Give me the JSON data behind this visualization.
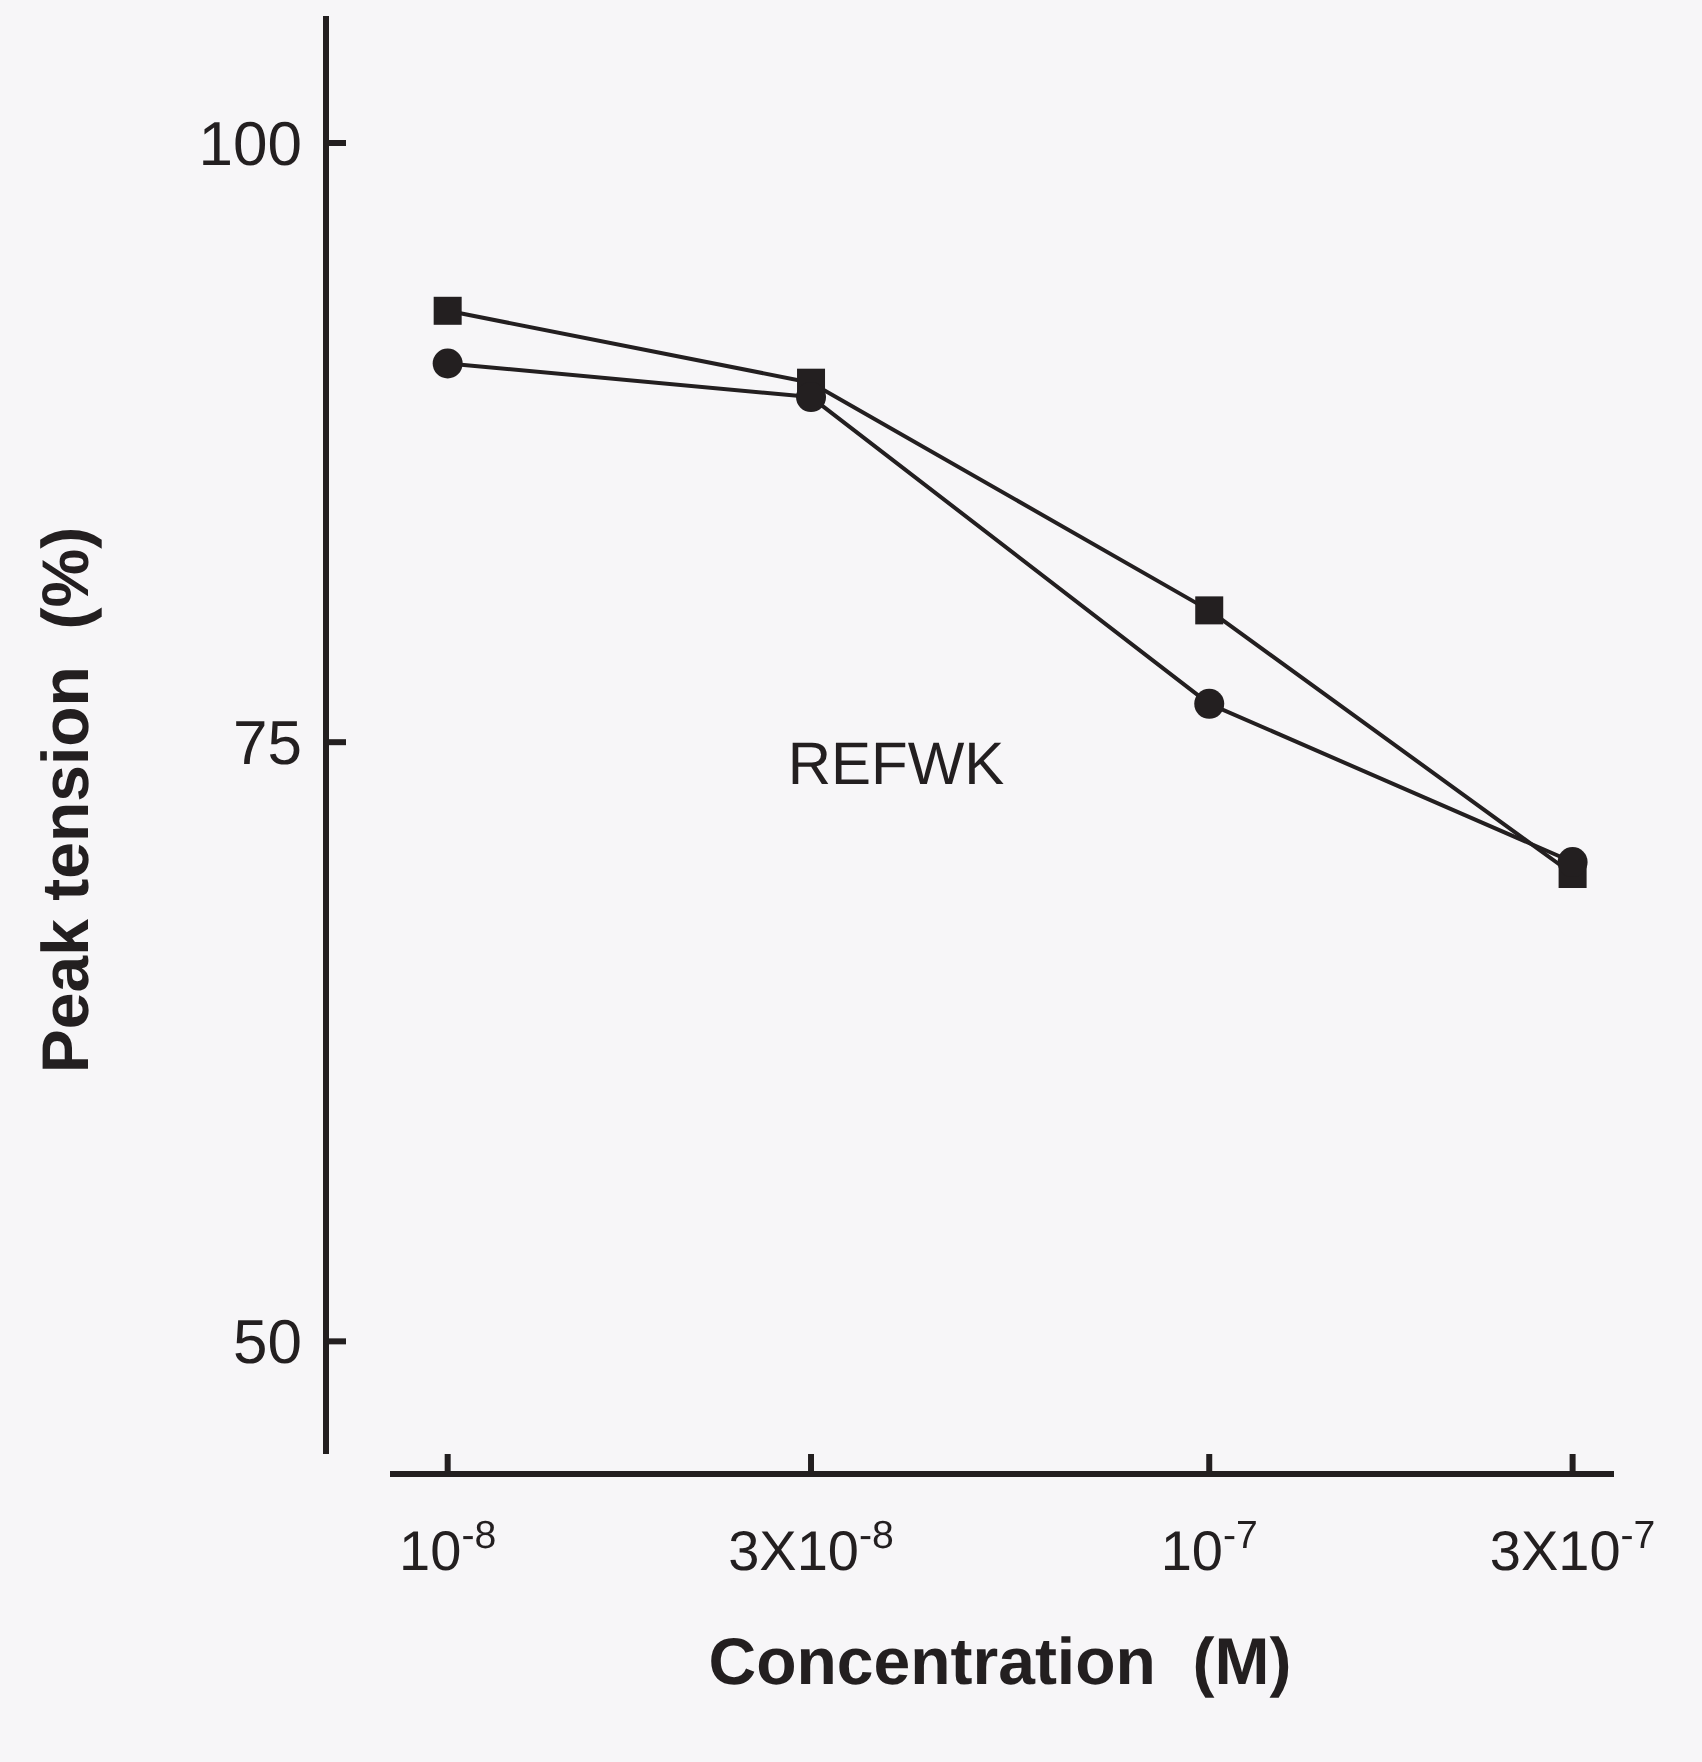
{
  "chart_data": {
    "type": "line",
    "xlabel": "Concentration  (M)",
    "ylabel": "Peak tension  (%)",
    "log": "x",
    "x": [
      1e-08,
      3e-08,
      1e-07,
      3e-07
    ],
    "xlim": [
      8.4e-09,
      3.4e-07
    ],
    "xticks": [
      {
        "value": 1e-08,
        "label": "10$^{-8}$"
      },
      {
        "value": 3e-08,
        "label": "3X10$^{-8}$"
      },
      {
        "value": 1e-07,
        "label": "10$^{-7}$"
      },
      {
        "value": 3e-07,
        "label": "3X10$^{-7}$"
      }
    ],
    "ylim": [
      45.3,
      105.3
    ],
    "yticks": [
      50,
      75,
      100
    ],
    "line_style": "solid",
    "series": [
      {
        "color": "#231f20",
        "marker": "square",
        "values": [
          93.0,
          90.0,
          80.5,
          69.5
        ]
      },
      {
        "color": "#231f20",
        "marker": "circle",
        "values": [
          90.8,
          89.4,
          76.6,
          70.0
        ]
      }
    ],
    "annotations": [
      {
        "text": "REFWK"
      }
    ]
  }
}
